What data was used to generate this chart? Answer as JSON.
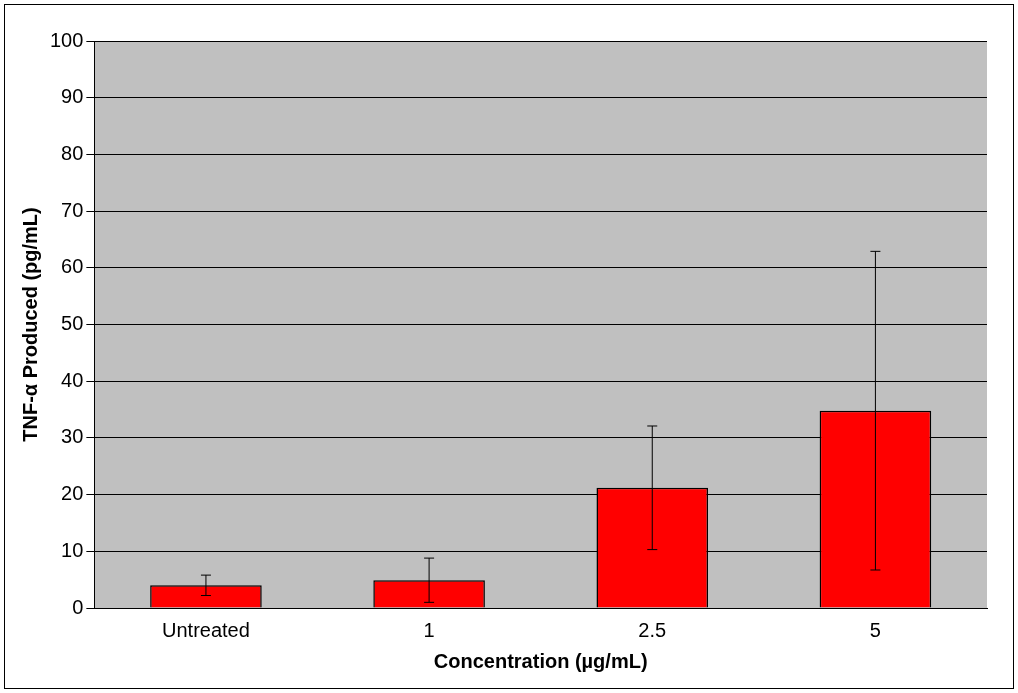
{
  "chart_data": {
    "type": "bar",
    "xlabel": "Concentration (µg/mL)",
    "ylabel": "TNF-α Produced (pg/mL)",
    "categories": [
      "Untreated",
      "1",
      "2.5",
      "5"
    ],
    "values": [
      4.0,
      4.9,
      21.2,
      34.8
    ],
    "errors": [
      1.8,
      3.9,
      10.9,
      28.1
    ],
    "color": "#ff0000",
    "ylim": [
      0,
      100
    ],
    "yticks": [
      0,
      10,
      20,
      30,
      40,
      50,
      60,
      70,
      80,
      90,
      100
    ],
    "grid": "y",
    "legend": false
  }
}
